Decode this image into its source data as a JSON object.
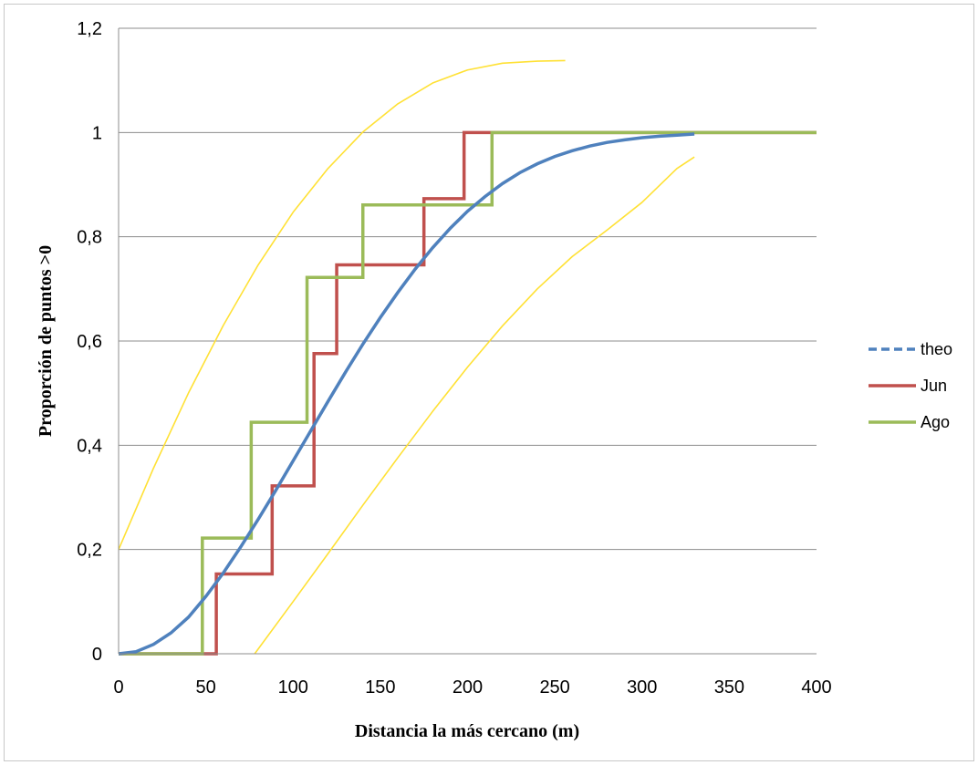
{
  "chart_data": {
    "type": "line",
    "xlabel": "Distancia la más cercano (m)",
    "ylabel": "Proporción de puntos >0",
    "xlim": [
      0,
      400
    ],
    "ylim": [
      0,
      1.2
    ],
    "x_ticks": [
      "0",
      "50",
      "100",
      "150",
      "200",
      "250",
      "300",
      "350",
      "400"
    ],
    "y_ticks": [
      "0",
      "0,2",
      "0,4",
      "0,6",
      "0,8",
      "1",
      "1,2"
    ],
    "grid": "horizontal",
    "legend_position": "right",
    "series": [
      {
        "name": "theo",
        "style": "line",
        "color": "#4f81bd",
        "x": [
          0,
          10,
          20,
          30,
          40,
          50,
          60,
          70,
          80,
          90,
          100,
          110,
          120,
          130,
          140,
          150,
          160,
          170,
          180,
          190,
          200,
          210,
          220,
          230,
          240,
          250,
          260,
          270,
          280,
          290,
          300,
          310,
          320,
          330
        ],
        "y": [
          0,
          0.004,
          0.018,
          0.04,
          0.07,
          0.11,
          0.155,
          0.205,
          0.258,
          0.313,
          0.37,
          0.427,
          0.484,
          0.54,
          0.594,
          0.645,
          0.693,
          0.738,
          0.779,
          0.816,
          0.849,
          0.877,
          0.902,
          0.923,
          0.94,
          0.954,
          0.965,
          0.974,
          0.981,
          0.986,
          0.99,
          0.993,
          0.995,
          0.997
        ]
      },
      {
        "name": "Jun",
        "style": "step",
        "color": "#c0504d",
        "x": [
          0,
          56,
          56,
          88,
          88,
          112,
          112,
          125,
          125,
          175,
          175,
          198,
          198,
          400
        ],
        "y": [
          0,
          0,
          0.153,
          0.153,
          0.322,
          0.322,
          0.576,
          0.576,
          0.746,
          0.746,
          0.873,
          0.873,
          1,
          1
        ]
      },
      {
        "name": "Ago",
        "style": "step",
        "color": "#9bbb59",
        "x": [
          0,
          48,
          48,
          76,
          76,
          108,
          108,
          140,
          140,
          214,
          214,
          400
        ],
        "y": [
          0,
          0,
          0.222,
          0.222,
          0.444,
          0.444,
          0.722,
          0.722,
          0.861,
          0.861,
          1,
          1
        ]
      }
    ],
    "envelopes": [
      {
        "color": "#ffe135",
        "x": [
          0,
          20,
          40,
          60,
          80,
          100,
          120,
          140,
          160,
          180,
          200,
          220,
          240,
          256
        ],
        "y": [
          0.2,
          0.356,
          0.5,
          0.63,
          0.746,
          0.847,
          0.931,
          1.001,
          1.055,
          1.095,
          1.12,
          1.133,
          1.137,
          1.138
        ]
      },
      {
        "color": "#ffe135",
        "x": [
          78,
          100,
          120,
          140,
          160,
          180,
          200,
          220,
          240,
          260,
          280,
          300,
          320,
          330
        ],
        "y": [
          0,
          0.1,
          0.192,
          0.285,
          0.376,
          0.465,
          0.55,
          0.629,
          0.7,
          0.762,
          0.813,
          0.866,
          0.931,
          0.953
        ]
      }
    ]
  }
}
